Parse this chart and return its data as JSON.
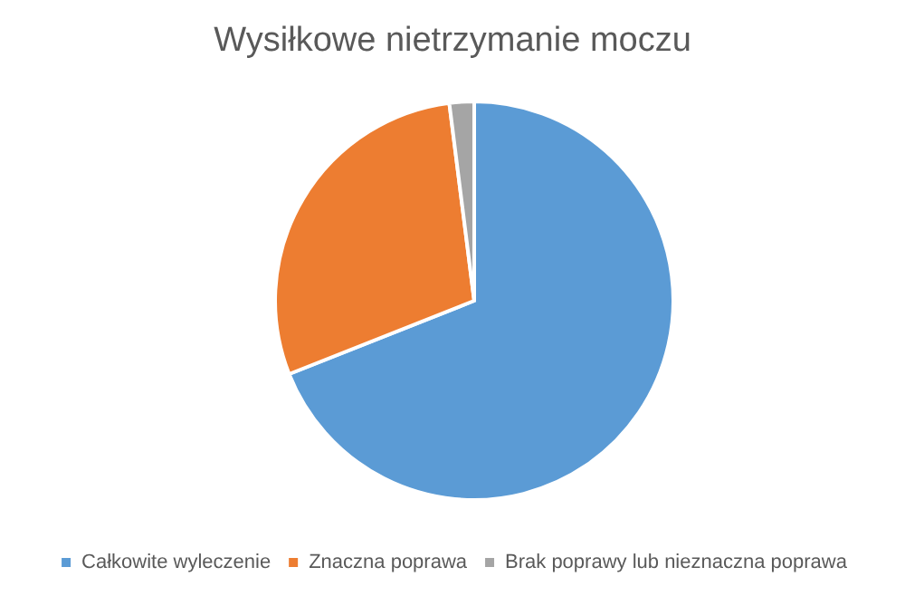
{
  "chart_data": {
    "type": "pie",
    "title": "Wysiłkowe nietrzymanie moczu",
    "categories": [
      "Całkowite wyleczenie",
      "Znaczna poprawa",
      "Brak poprawy lub nieznaczna poprawa"
    ],
    "values": [
      69,
      29,
      2
    ],
    "colors": [
      "#5b9bd5",
      "#ed7d31",
      "#a5a5a5"
    ],
    "legend": "bottom"
  }
}
